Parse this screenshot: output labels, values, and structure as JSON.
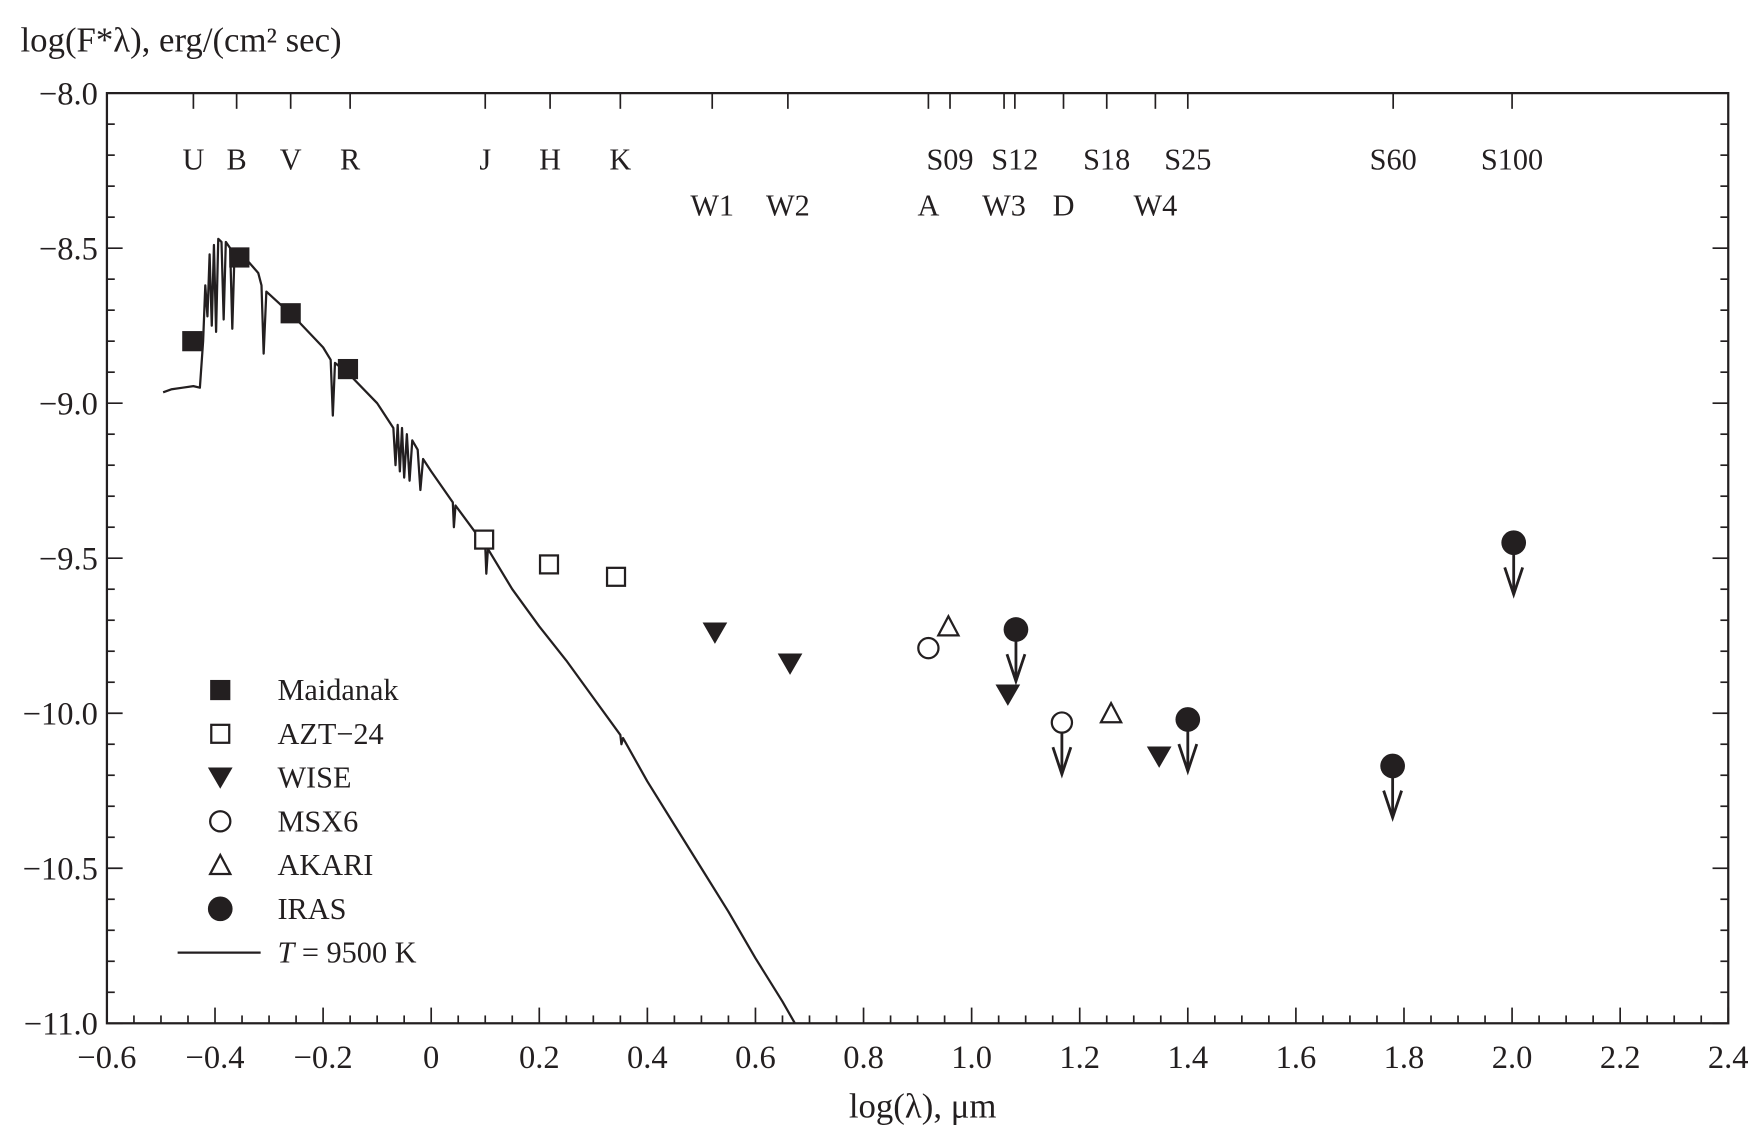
{
  "chart_data": {
    "type": "scatter",
    "title": "",
    "xlabel": "log(λ), μm",
    "ylabel": "log(F*λ), erg/(cm² sec)",
    "xlim": [
      -0.6,
      2.4
    ],
    "ylim": [
      -11.0,
      -8.0
    ],
    "xticks": [
      -0.6,
      -0.4,
      -0.2,
      0,
      0.2,
      0.4,
      0.6,
      0.8,
      1.0,
      1.2,
      1.4,
      1.6,
      1.8,
      2.0,
      2.2,
      2.4
    ],
    "xtick_labels": [
      "−0.6",
      "−0.4",
      "−0.2",
      "0",
      "0.2",
      "0.4",
      "0.6",
      "0.8",
      "1.0",
      "1.2",
      "1.4",
      "1.6",
      "1.8",
      "2.0",
      "2.2",
      "2.4"
    ],
    "yticks": [
      -8.0,
      -8.5,
      -9.0,
      -9.5,
      -10.0,
      -10.5,
      -11.0
    ],
    "ytick_labels": [
      "−8.0",
      "−8.5",
      "−9.0",
      "−9.5",
      "−10.0",
      "−10.5",
      "−11.0"
    ],
    "grid": false,
    "legend_placement": "bottom-left",
    "bands_row1": [
      {
        "label": "U",
        "x": -0.44
      },
      {
        "label": "B",
        "x": -0.36
      },
      {
        "label": "V",
        "x": -0.26
      },
      {
        "label": "R",
        "x": -0.15
      },
      {
        "label": "J",
        "x": 0.1
      },
      {
        "label": "H",
        "x": 0.22
      },
      {
        "label": "K",
        "x": 0.35
      },
      {
        "label": "S09",
        "x": 0.96
      },
      {
        "label": "S12",
        "x": 1.08
      },
      {
        "label": "S18",
        "x": 1.25
      },
      {
        "label": "S25",
        "x": 1.4
      },
      {
        "label": "S60",
        "x": 1.78
      },
      {
        "label": "S100",
        "x": 2.0
      }
    ],
    "bands_row2": [
      {
        "label": "W1",
        "x": 0.52
      },
      {
        "label": "W2",
        "x": 0.66
      },
      {
        "label": "A",
        "x": 0.92
      },
      {
        "label": "W3",
        "x": 1.06
      },
      {
        "label": "D",
        "x": 1.17
      },
      {
        "label": "W4",
        "x": 1.34
      }
    ],
    "series": [
      {
        "name": "Maidanak",
        "marker": "filled-square",
        "points": [
          [
            -0.442,
            -8.8
          ],
          [
            -0.355,
            -8.53
          ],
          [
            -0.26,
            -8.71
          ],
          [
            -0.154,
            -8.89
          ]
        ]
      },
      {
        "name": "AZT−24",
        "marker": "open-square",
        "points": [
          [
            0.098,
            -9.44
          ],
          [
            0.218,
            -9.52
          ],
          [
            0.342,
            -9.56
          ]
        ]
      },
      {
        "name": "WISE",
        "marker": "filled-triangle-down",
        "points": [
          [
            0.525,
            -9.74
          ],
          [
            0.664,
            -9.84
          ],
          [
            1.067,
            -9.94
          ],
          [
            1.347,
            -10.14
          ]
        ]
      },
      {
        "name": "MSX6",
        "marker": "open-circle",
        "points": [
          [
            0.92,
            -9.79
          ],
          [
            1.167,
            -10.03
          ]
        ],
        "upper_limits": [
          false,
          true
        ]
      },
      {
        "name": "AKARI",
        "marker": "open-triangle-up",
        "points": [
          [
            0.957,
            -9.72
          ],
          [
            1.258,
            -10.0
          ]
        ]
      },
      {
        "name": "IRAS",
        "marker": "filled-circle",
        "points": [
          [
            1.082,
            -9.73
          ],
          [
            1.4,
            -10.02
          ],
          [
            1.779,
            -10.17
          ],
          [
            2.003,
            -9.45
          ]
        ],
        "upper_limits": [
          true,
          true,
          true,
          true
        ]
      }
    ],
    "model": {
      "name_italic": "T",
      "name_rest": " = 9500 K",
      "points": [
        [
          -0.496,
          -8.965
        ],
        [
          -0.48,
          -8.955
        ],
        [
          -0.46,
          -8.95
        ],
        [
          -0.44,
          -8.945
        ],
        [
          -0.428,
          -8.95
        ],
        [
          -0.422,
          -8.8
        ],
        [
          -0.418,
          -8.62
        ],
        [
          -0.414,
          -8.72
        ],
        [
          -0.41,
          -8.52
        ],
        [
          -0.406,
          -8.75
        ],
        [
          -0.402,
          -8.49
        ],
        [
          -0.398,
          -8.77
        ],
        [
          -0.394,
          -8.47
        ],
        [
          -0.388,
          -8.48
        ],
        [
          -0.384,
          -8.73
        ],
        [
          -0.38,
          -8.48
        ],
        [
          -0.372,
          -8.5
        ],
        [
          -0.368,
          -8.76
        ],
        [
          -0.364,
          -8.52
        ],
        [
          -0.34,
          -8.54
        ],
        [
          -0.32,
          -8.58
        ],
        [
          -0.314,
          -8.62
        ],
        [
          -0.31,
          -8.84
        ],
        [
          -0.305,
          -8.64
        ],
        [
          -0.28,
          -8.68
        ],
        [
          -0.26,
          -8.71
        ],
        [
          -0.2,
          -8.82
        ],
        [
          -0.186,
          -8.86
        ],
        [
          -0.182,
          -9.04
        ],
        [
          -0.178,
          -8.87
        ],
        [
          -0.15,
          -8.91
        ],
        [
          -0.1,
          -9.0
        ],
        [
          -0.07,
          -9.08
        ],
        [
          -0.066,
          -9.2
        ],
        [
          -0.062,
          -9.07
        ],
        [
          -0.058,
          -9.22
        ],
        [
          -0.054,
          -9.08
        ],
        [
          -0.05,
          -9.24
        ],
        [
          -0.045,
          -9.1
        ],
        [
          -0.04,
          -9.25
        ],
        [
          -0.035,
          -9.12
        ],
        [
          -0.025,
          -9.15
        ],
        [
          -0.02,
          -9.28
        ],
        [
          -0.015,
          -9.18
        ],
        [
          0.0,
          -9.22
        ],
        [
          0.04,
          -9.32
        ],
        [
          0.042,
          -9.4
        ],
        [
          0.045,
          -9.33
        ],
        [
          0.1,
          -9.46
        ],
        [
          0.102,
          -9.55
        ],
        [
          0.105,
          -9.47
        ],
        [
          0.15,
          -9.6
        ],
        [
          0.2,
          -9.72
        ],
        [
          0.25,
          -9.83
        ],
        [
          0.3,
          -9.95
        ],
        [
          0.35,
          -10.07
        ],
        [
          0.352,
          -10.1
        ],
        [
          0.355,
          -10.08
        ],
        [
          0.4,
          -10.22
        ],
        [
          0.45,
          -10.36
        ],
        [
          0.5,
          -10.5
        ],
        [
          0.55,
          -10.64
        ],
        [
          0.6,
          -10.79
        ],
        [
          0.65,
          -10.93
        ],
        [
          0.673,
          -11.0
        ]
      ]
    },
    "colors": {
      "ink": "#231f20",
      "background": "#ffffff"
    }
  }
}
